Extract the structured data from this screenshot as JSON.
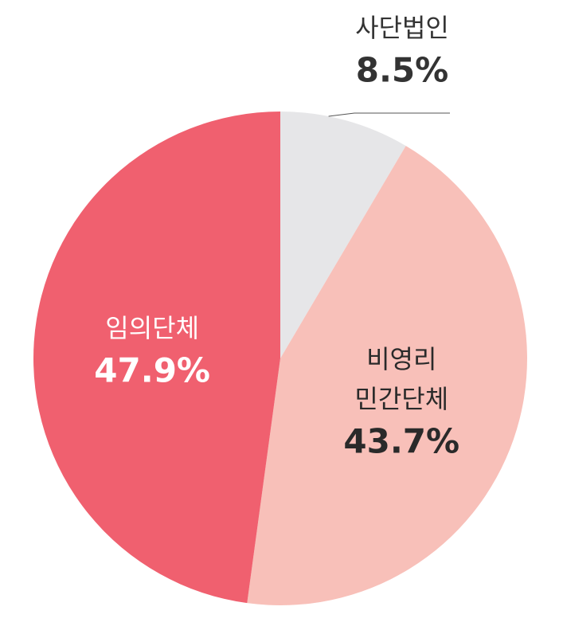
{
  "chart_data": {
    "type": "pie",
    "categories": [
      "사단법인",
      "비영리 민간단체",
      "임의단체"
    ],
    "values": [
      8.5,
      43.7,
      47.9
    ],
    "value_labels": [
      "8.5%",
      "43.7%",
      "47.9%"
    ],
    "colors": [
      "#e6e6e8",
      "#f8c0b9",
      "#f0606f"
    ]
  }
}
